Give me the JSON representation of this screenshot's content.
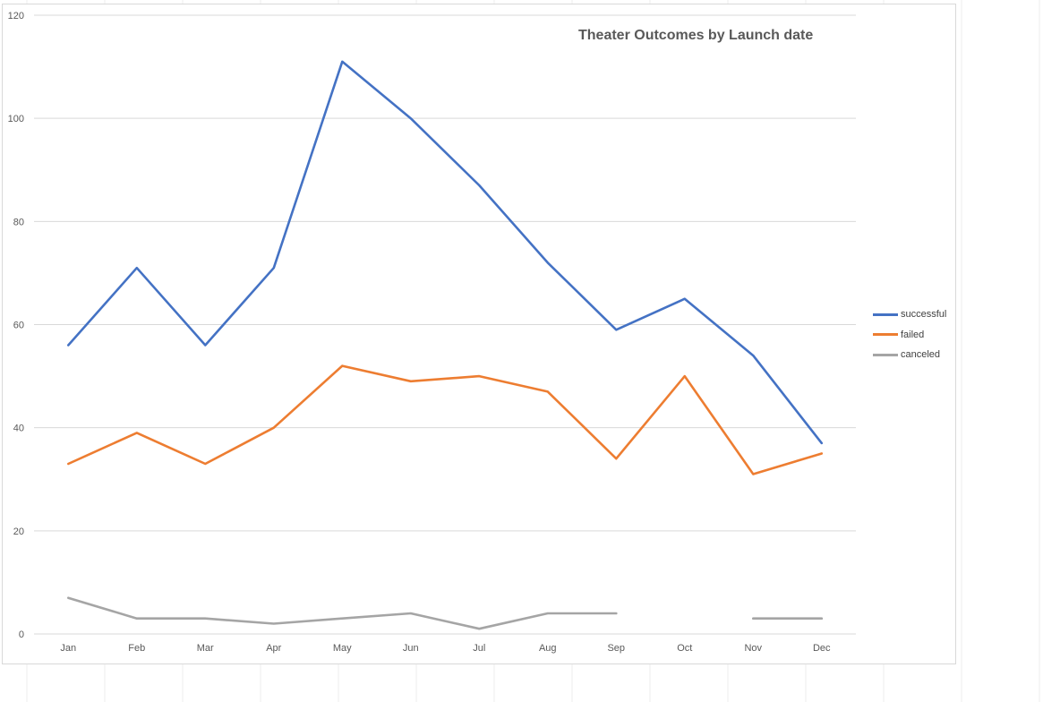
{
  "colors": {
    "successful": "#4472C4",
    "failed": "#ED7D31",
    "canceled": "#A5A5A5",
    "gridline": "#d9d9d9",
    "axis_text": "#595959"
  },
  "chart_data": {
    "type": "line",
    "title": "Theater Outcomes by Launch date",
    "xlabel": "",
    "ylabel": "",
    "categories": [
      "Jan",
      "Feb",
      "Mar",
      "Apr",
      "May",
      "Jun",
      "Jul",
      "Aug",
      "Sep",
      "Oct",
      "Nov",
      "Dec"
    ],
    "ylim": [
      0,
      120
    ],
    "yticks": [
      0,
      20,
      40,
      60,
      80,
      100,
      120
    ],
    "grid": true,
    "legend_position": "right",
    "series": [
      {
        "name": "successful",
        "values": [
          56,
          71,
          56,
          71,
          111,
          100,
          87,
          72,
          59,
          65,
          54,
          37
        ]
      },
      {
        "name": "failed",
        "values": [
          33,
          39,
          33,
          40,
          52,
          49,
          50,
          47,
          34,
          50,
          31,
          35
        ]
      },
      {
        "name": "canceled",
        "values": [
          7,
          3,
          3,
          2,
          3,
          4,
          1,
          4,
          4,
          null,
          3,
          3
        ]
      }
    ]
  }
}
